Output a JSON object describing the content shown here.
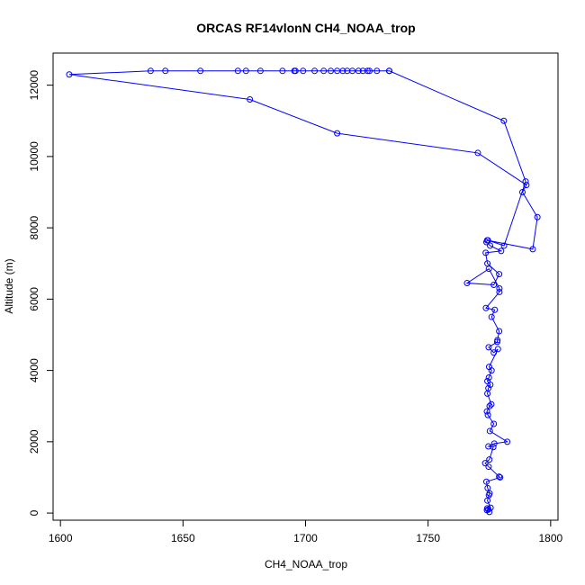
{
  "chart_data": {
    "type": "line",
    "title": "ORCAS RF14vlonN CH4_NOAA_trop",
    "xlabel": "CH4_NOAA_trop",
    "ylabel": "Altitude (m)",
    "xlim": [
      1597,
      1803
    ],
    "ylim": [
      -200,
      12900
    ],
    "xticks": [
      1600,
      1650,
      1700,
      1750,
      1800
    ],
    "yticks": [
      0,
      2000,
      4000,
      6000,
      8000,
      10000,
      12000
    ],
    "grid": false,
    "legend": "none",
    "line_color": "#0000ff",
    "marker": "open-circle",
    "series": [
      {
        "x": [
          1775.0,
          1774.0,
          1774.6,
          1774.1,
          1775.5,
          1774.2,
          1774.8,
          1775.1,
          1774.3,
          1773.8,
          1779.4,
          1779.0,
          1774.7,
          1773.3,
          1775.0,
          1776.6,
          1774.6,
          1777.0,
          1782.3,
          1775.2,
          1776.8,
          1774.4,
          1774.0,
          1775.1,
          1775.8,
          1774.2,
          1774.6,
          1775.4,
          1774.2,
          1774.8,
          1775.9,
          1774.9,
          1778.5,
          1776.8,
          1774.7,
          1778.2,
          1778.3,
          1779.0,
          1775.9,
          1777.2,
          1773.6,
          1779.1,
          1779.1,
          1774.8,
          1765.9,
          1776.8,
          1779.0,
          1774.2,
          1773.5,
          1779.8,
          1775.3,
          1773.8,
          1774.1,
          1792.7,
          1794.6,
          1788.5,
          1790.1,
          1770.3,
          1712.9,
          1677.3,
          1603.6,
          1636.8,
          1642.8,
          1657.1,
          1672.4,
          1675.7,
          1681.6,
          1690.6,
          1695.4,
          1695.9,
          1699.0,
          1703.7,
          1707.4,
          1710.3,
          1712.9,
          1715.2,
          1717.0,
          1719.1,
          1721.6,
          1723.4,
          1725.3,
          1726.1,
          1729.1,
          1734.1,
          1734.2,
          1780.9,
          1789.8,
          1781.0,
          1774.4
        ],
        "y": [
          30,
          80,
          100,
          130,
          150,
          350,
          500,
          550,
          700,
          880,
          1000,
          1020,
          1300,
          1400,
          1500,
          1850,
          1870,
          1950,
          2000,
          2300,
          2500,
          2750,
          2850,
          3000,
          3050,
          3350,
          3500,
          3600,
          3700,
          3800,
          4000,
          4100,
          4600,
          4500,
          4650,
          4800,
          4850,
          5100,
          5500,
          5700,
          5750,
          6200,
          6300,
          6850,
          6450,
          6400,
          6700,
          7000,
          7300,
          7350,
          7500,
          7600,
          7650,
          7400,
          8300,
          9000,
          9200,
          10100,
          10650,
          11600,
          12300,
          12400,
          12400,
          12400,
          12400,
          12400,
          12400,
          12400,
          12400,
          12400,
          12400,
          12400,
          12400,
          12400,
          12400,
          12400,
          12400,
          12400,
          12400,
          12400,
          12400,
          12400,
          12400,
          12400,
          12400,
          11000,
          9300,
          7500,
          7650
        ]
      }
    ]
  }
}
